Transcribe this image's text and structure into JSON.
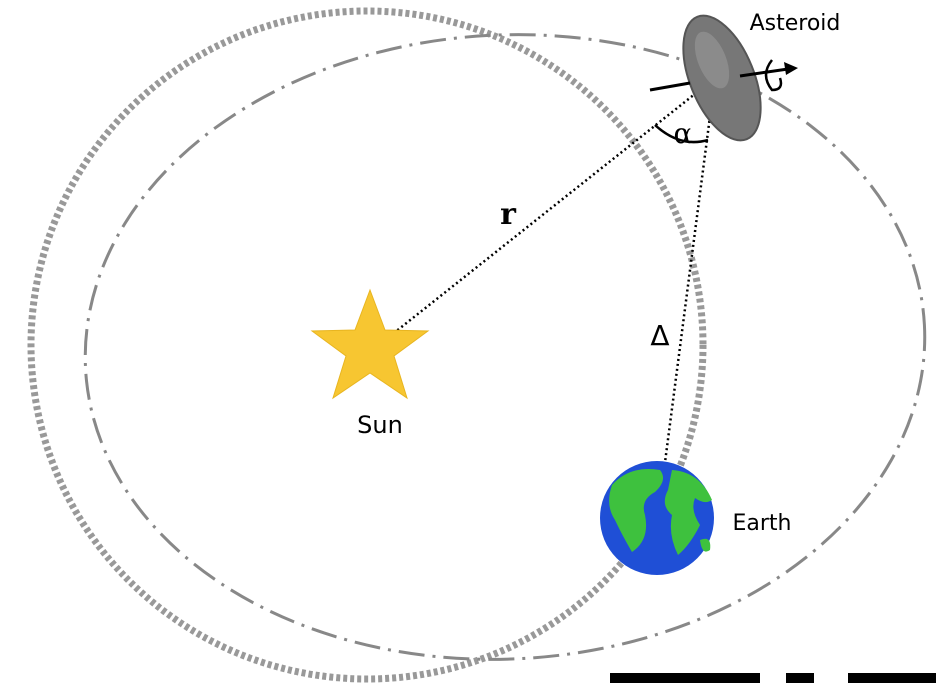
{
  "labels": {
    "asteroid": "Asteroid",
    "alpha": "α",
    "r": "r",
    "sun": "Sun",
    "delta": "Δ",
    "earth": "Earth"
  }
}
